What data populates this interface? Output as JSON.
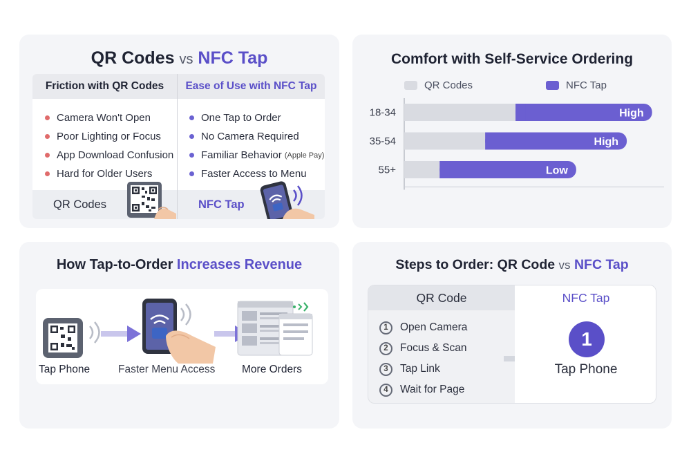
{
  "panel1": {
    "title_a": "QR Codes",
    "title_vs": "vs",
    "title_b": "NFC Tap",
    "left_header": "Friction with QR Codes",
    "right_header": "Ease of Use with NFC Tap",
    "left_items": [
      "Camera Won't Open",
      "Poor Lighting or Focus",
      "App Download Confusion",
      "Hard for Older Users"
    ],
    "right_items": [
      "One Tap to Order",
      "No Camera Required",
      "Familiar Behavior",
      "Faster Access to Menu"
    ],
    "right_item_note": "(Apple Pay)",
    "left_footer": "QR Codes",
    "right_footer": "NFC Tap",
    "icons": [
      "qr-code-icon",
      "nfc-phone-icon",
      "hand-icon"
    ],
    "colors": {
      "accent": "#5a4fc8",
      "friction_dot": "#e06b6b"
    }
  },
  "panel2": {
    "title": "Comfort with Self-Service Ordering"
  },
  "chart_data": {
    "type": "bar",
    "orientation": "horizontal",
    "stacked": true,
    "title": "Comfort with Self-Service Ordering",
    "categories": [
      "18-34",
      "35-54",
      "55+"
    ],
    "series": [
      {
        "name": "QR Codes",
        "color": "#d9dbe1",
        "values": [
          22,
          16,
          7
        ]
      },
      {
        "name": "NFC Tap",
        "color": "#6b5fd1",
        "values": [
          27,
          28,
          27
        ],
        "labels": [
          "High",
          "High",
          "Low"
        ]
      }
    ],
    "xlim": [
      0,
      50
    ],
    "legend": "top",
    "grid": false
  },
  "panel3": {
    "title_a": "How Tap-to-Order",
    "title_b": "Increases Revenue",
    "steps": [
      "Tap Phone",
      "Faster Menu Access",
      "More Orders"
    ],
    "icons": [
      "qr-code-icon",
      "nfc-phone-icon",
      "arrow-right-icon",
      "order-screens-icon"
    ]
  },
  "panel4": {
    "title_a": "Steps to Order: QR Code",
    "title_vs": "vs",
    "title_b": "NFC Tap",
    "qr_header": "QR Code",
    "nfc_header": "NFC Tap",
    "qr_steps": [
      {
        "num": "1",
        "label": "Open Camera"
      },
      {
        "num": "2",
        "label": "Focus & Scan"
      },
      {
        "num": "3",
        "label": "Tap Link"
      },
      {
        "num": "4",
        "label": "Wait for Page"
      }
    ],
    "nfc_step_num": "1",
    "nfc_step_label": "Tap Phone"
  }
}
